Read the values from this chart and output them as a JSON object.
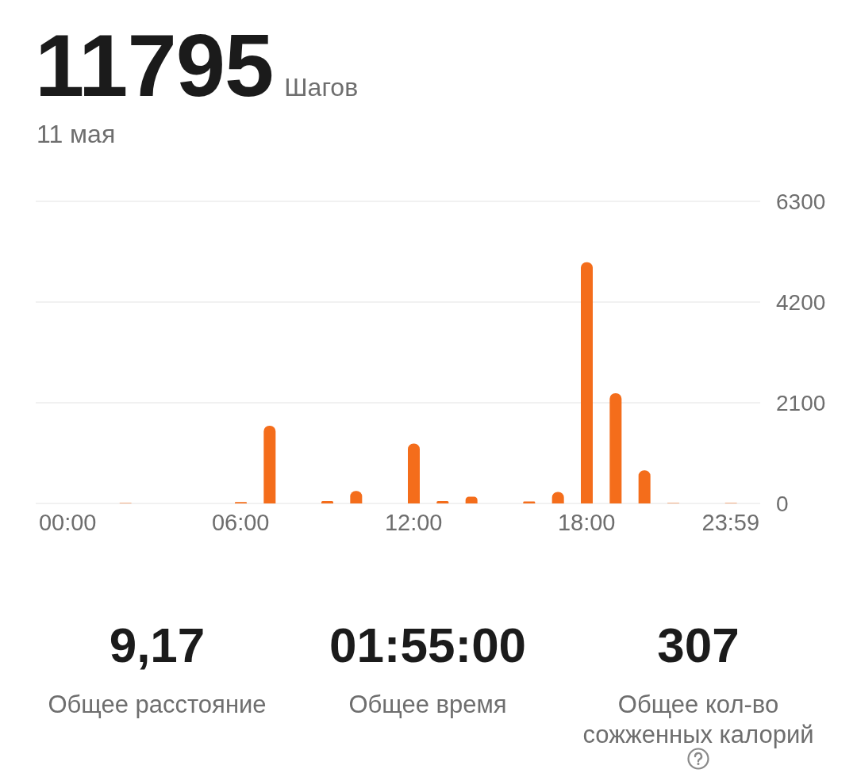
{
  "chart_data": {
    "type": "bar",
    "title": "11795",
    "subtitle": "Шагов",
    "categories": [
      "00:00",
      null,
      null,
      null,
      null,
      null,
      "06:00",
      null,
      null,
      null,
      null,
      null,
      "12:00",
      null,
      null,
      null,
      null,
      null,
      "18:00",
      null,
      null,
      null,
      null,
      "23:59"
    ],
    "values": [
      0,
      0,
      10,
      0,
      0,
      0,
      30,
      1620,
      0,
      50,
      260,
      0,
      1250,
      50,
      140,
      0,
      40,
      240,
      5030,
      2300,
      690,
      10,
      0,
      10
    ],
    "color": "#f46d1b",
    "ylim": [
      0,
      6300
    ],
    "yticks": [
      0,
      2100,
      4200,
      6300
    ],
    "grid": "y",
    "annotations": [
      "11 мая",
      "9,17",
      "Общее расстояние",
      "01:55:00",
      "Общее время",
      "307",
      "Общее кол-во сожженных калорий"
    ]
  }
}
